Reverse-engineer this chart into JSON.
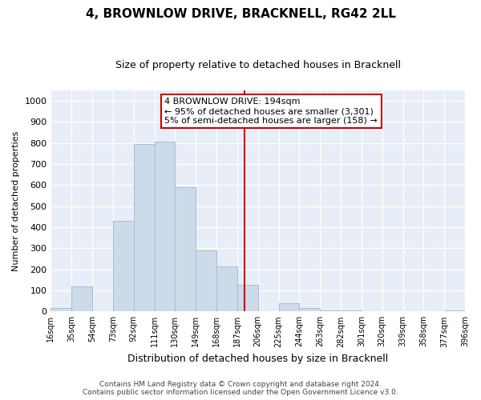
{
  "title": "4, BROWNLOW DRIVE, BRACKNELL, RG42 2LL",
  "subtitle": "Size of property relative to detached houses in Bracknell",
  "xlabel": "Distribution of detached houses by size in Bracknell",
  "ylabel": "Number of detached properties",
  "bar_edges": [
    16,
    35,
    54,
    73,
    92,
    111,
    130,
    149,
    168,
    187,
    206,
    225,
    244,
    263,
    282,
    301,
    320,
    339,
    358,
    377,
    396
  ],
  "bar_heights": [
    15,
    120,
    0,
    430,
    795,
    805,
    590,
    290,
    215,
    125,
    0,
    40,
    15,
    5,
    5,
    0,
    0,
    0,
    0,
    5
  ],
  "bar_color": "#cddaea",
  "bar_edgecolor": "#a8bfd4",
  "vline_x": 194,
  "vline_color": "#cc0000",
  "annotation_lines": [
    "4 BROWNLOW DRIVE: 194sqm",
    "← 95% of detached houses are smaller (3,301)",
    "5% of semi-detached houses are larger (158) →"
  ],
  "ylim": [
    0,
    1050
  ],
  "yticks": [
    0,
    100,
    200,
    300,
    400,
    500,
    600,
    700,
    800,
    900,
    1000
  ],
  "tick_labels": [
    "16sqm",
    "35sqm",
    "54sqm",
    "73sqm",
    "92sqm",
    "111sqm",
    "130sqm",
    "149sqm",
    "168sqm",
    "187sqm",
    "206sqm",
    "225sqm",
    "244sqm",
    "263sqm",
    "282sqm",
    "301sqm",
    "320sqm",
    "339sqm",
    "358sqm",
    "377sqm",
    "396sqm"
  ],
  "footer_line1": "Contains HM Land Registry data © Crown copyright and database right 2024.",
  "footer_line2": "Contains public sector information licensed under the Open Government Licence v3.0.",
  "background_color": "#ffffff",
  "grid_color": "#ccd6e8",
  "title_fontsize": 11,
  "subtitle_fontsize": 9,
  "xlabel_fontsize": 9,
  "ylabel_fontsize": 8,
  "ytick_fontsize": 8,
  "xtick_fontsize": 7,
  "annotation_fontsize": 8,
  "footer_fontsize": 6.5
}
